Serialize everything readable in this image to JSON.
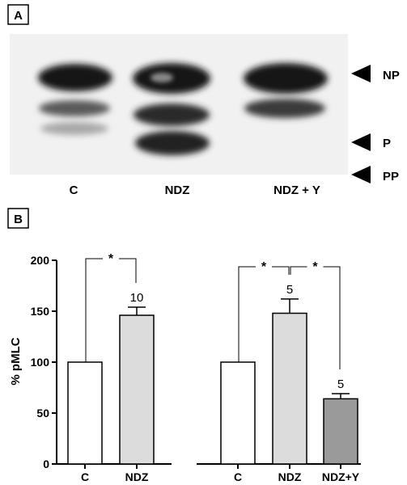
{
  "panel_a": {
    "label": "A",
    "band_markers": [
      "NP",
      "P",
      "PP"
    ],
    "lanes": [
      "C",
      "NDZ",
      "NDZ + Y"
    ]
  },
  "panel_b": {
    "label": "B"
  },
  "chart_data": {
    "type": "bar",
    "ylabel": "% pMLC",
    "xlabel": "",
    "ylim": [
      0,
      200
    ],
    "yticks": [
      0,
      50,
      100,
      150,
      200
    ],
    "grid": false,
    "groups": [
      {
        "categories": [
          "C",
          "NDZ"
        ],
        "values": [
          100,
          146
        ],
        "errors": [
          0,
          8
        ],
        "n_labels": [
          "",
          "10"
        ],
        "fills": [
          "#ffffff",
          "#dcdcdc"
        ],
        "significance": [
          {
            "from": 0,
            "to": 1,
            "label": "*"
          }
        ]
      },
      {
        "categories": [
          "C",
          "NDZ",
          "NDZ+Y"
        ],
        "values": [
          100,
          148,
          64
        ],
        "errors": [
          0,
          14,
          5
        ],
        "n_labels": [
          "",
          "5",
          "5"
        ],
        "fills": [
          "#ffffff",
          "#dcdcdc",
          "#9a9a9a"
        ],
        "significance": [
          {
            "from": 0,
            "to": 1,
            "label": "*"
          },
          {
            "from": 1,
            "to": 2,
            "label": "*"
          }
        ]
      }
    ]
  }
}
